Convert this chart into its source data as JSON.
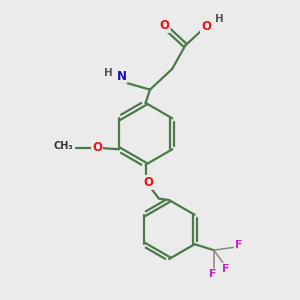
{
  "background_color": "#ebebeb",
  "bond_color": "#4a7a4a",
  "bond_width": 1.6,
  "atom_colors": {
    "O": "#ee1111",
    "N": "#1111cc",
    "F": "#cc22cc",
    "H": "#555555",
    "C": "#333333"
  },
  "font_size": 8.5
}
